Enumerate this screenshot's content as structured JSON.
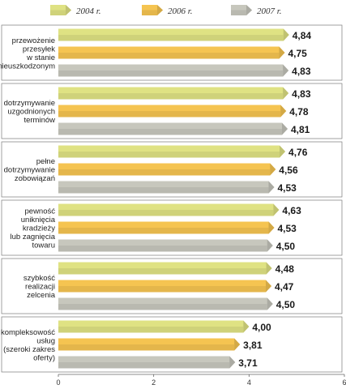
{
  "chart_data": {
    "type": "bar",
    "orientation": "horizontal",
    "legend_position": "top",
    "grid": false,
    "xlim": [
      0,
      6
    ],
    "x_ticks": [
      "0",
      "2",
      "4",
      "6"
    ],
    "series": [
      {
        "name": "2004 r.",
        "color": "#dfe283"
      },
      {
        "name": "2006 r.",
        "color": "#f5c451"
      },
      {
        "name": "2007 r.",
        "color": "#c7c7bd"
      }
    ],
    "categories": [
      {
        "label": [
          "przewożenie",
          "przesyłek",
          "w stanie",
          "nieuszkodzonym"
        ],
        "values": [
          4.84,
          4.75,
          4.83
        ],
        "value_labels": [
          "4,84",
          "4,75",
          "4,83"
        ]
      },
      {
        "label": [
          "dotrzymywanie",
          "uzgodnionych",
          "terminów"
        ],
        "values": [
          4.83,
          4.78,
          4.81
        ],
        "value_labels": [
          "4,83",
          "4,78",
          "4,81"
        ]
      },
      {
        "label": [
          "pełne",
          "dotrzymywanie",
          "zobowiązań"
        ],
        "values": [
          4.76,
          4.56,
          4.53
        ],
        "value_labels": [
          "4,76",
          "4,56",
          "4,53"
        ]
      },
      {
        "label": [
          "pewność",
          "uniknięcia",
          "kradzieży",
          "lub zagnięcia",
          "towaru"
        ],
        "values": [
          4.63,
          4.53,
          4.5
        ],
        "value_labels": [
          "4,63",
          "4,53",
          "4,50"
        ]
      },
      {
        "label": [
          "szybkość",
          "realizacji",
          "zelcenia"
        ],
        "values": [
          4.48,
          4.47,
          4.5
        ],
        "value_labels": [
          "4,48",
          "4,47",
          "4,50"
        ]
      },
      {
        "label": [
          "kompleksowość",
          "usług",
          "(szeroki zakres",
          "oferty)"
        ],
        "values": [
          4.0,
          3.81,
          3.71
        ],
        "value_labels": [
          "4,00",
          "3,81",
          "3,71"
        ]
      }
    ]
  }
}
